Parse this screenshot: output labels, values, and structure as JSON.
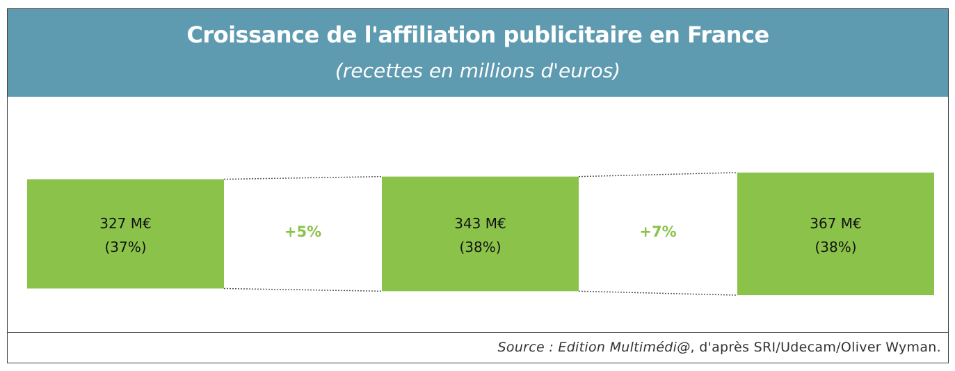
{
  "header": {
    "title": "Croissance de l'affiliation publicitaire en France",
    "subtitle": "(recettes en millions d'euros)"
  },
  "source": {
    "italic_part": "Source : Edition Multimédi@",
    "rest": ", d'après SRI/Udecam/Oliver Wyman."
  },
  "colors": {
    "header_bg": "#5f9bb0",
    "bar_fill": "#8bc34a",
    "growth_text": "#8bc34a",
    "connector": "#555555"
  },
  "chart_data": {
    "type": "bar",
    "title": "Croissance de l'affiliation publicitaire en France",
    "subtitle": "(recettes en millions d'euros)",
    "categories": [
      "",
      "",
      ""
    ],
    "values": [
      327,
      343,
      367
    ],
    "unit": "M€",
    "value_labels": [
      "327 M€",
      "343 M€",
      "367 M€"
    ],
    "share_labels": [
      "(37%)",
      "(38%)",
      "(38%)"
    ],
    "growth_labels": [
      "+5%",
      "+7%"
    ],
    "xlabel": "",
    "ylabel": "",
    "legend": "none",
    "grid": false
  }
}
